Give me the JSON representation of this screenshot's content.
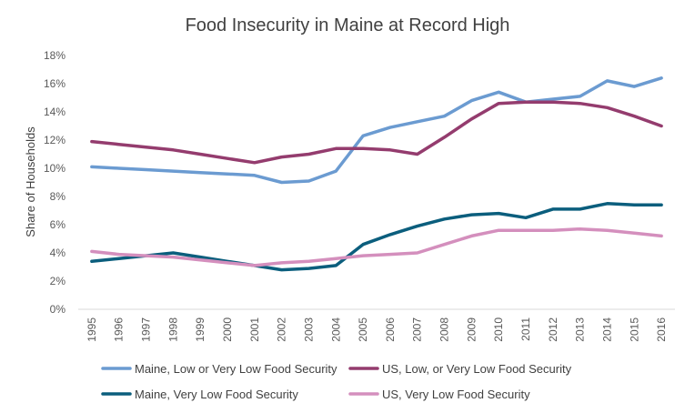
{
  "chart_data": {
    "type": "line",
    "title": "Food Insecurity in Maine at Record High",
    "xlabel": "",
    "ylabel": "Share of Households",
    "ylim": [
      0,
      18
    ],
    "yticks": [
      "0%",
      "2%",
      "4%",
      "6%",
      "8%",
      "10%",
      "12%",
      "14%",
      "16%",
      "18%"
    ],
    "grid": false,
    "legend_position": "bottom",
    "x": [
      "1995",
      "1996",
      "1997",
      "1998",
      "1999",
      "2000",
      "2001",
      "2002",
      "2003",
      "2004",
      "2005",
      "2006",
      "2007",
      "2008",
      "2009",
      "2010",
      "2011",
      "2012",
      "2013",
      "2014",
      "2015",
      "2016"
    ],
    "series": [
      {
        "name": "Maine, Low or Very Low Food Security",
        "color": "#6b9bd1",
        "values": [
          10.1,
          10.0,
          9.9,
          9.8,
          9.7,
          9.6,
          9.5,
          9.0,
          9.1,
          9.8,
          12.3,
          12.9,
          13.3,
          13.7,
          14.8,
          15.4,
          14.7,
          14.9,
          15.1,
          16.2,
          15.8,
          16.4
        ]
      },
      {
        "name": "US, Low, or Very Low Food Security",
        "color": "#943c6e",
        "values": [
          11.9,
          11.7,
          11.5,
          11.3,
          11.0,
          10.7,
          10.4,
          10.8,
          11.0,
          11.4,
          11.4,
          11.3,
          11.0,
          12.2,
          13.5,
          14.6,
          14.7,
          14.7,
          14.6,
          14.3,
          13.7,
          13.0
        ]
      },
      {
        "name": "Maine, Very Low Food Security",
        "color": "#0b5e7d",
        "values": [
          3.4,
          3.6,
          3.8,
          4.0,
          3.7,
          3.4,
          3.1,
          2.8,
          2.9,
          3.1,
          4.6,
          5.3,
          5.9,
          6.4,
          6.7,
          6.8,
          6.5,
          7.1,
          7.1,
          7.5,
          7.4,
          7.4
        ]
      },
      {
        "name": "US, Very Low Food Security",
        "color": "#d48fbd",
        "values": [
          4.1,
          3.9,
          3.8,
          3.7,
          3.5,
          3.3,
          3.1,
          3.3,
          3.4,
          3.6,
          3.8,
          3.9,
          4.0,
          4.6,
          5.2,
          5.6,
          5.6,
          5.6,
          5.7,
          5.6,
          5.4,
          5.2
        ]
      }
    ]
  }
}
